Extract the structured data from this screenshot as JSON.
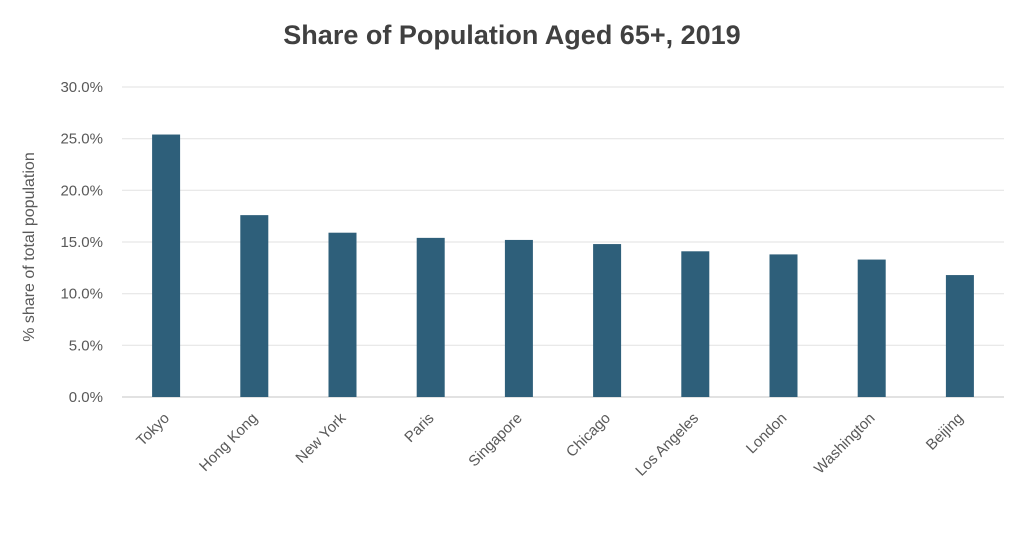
{
  "chart_data": {
    "type": "bar",
    "title": "Share of Population Aged 65+, 2019",
    "xlabel": "",
    "ylabel": "% share of total population",
    "categories": [
      "Tokyo",
      "Hong Kong",
      "New York",
      "Paris",
      "Singapore",
      "Chicago",
      "Los Angeles",
      "London",
      "Washington",
      "Beijing"
    ],
    "values": [
      25.4,
      17.6,
      15.9,
      15.4,
      15.2,
      14.8,
      14.1,
      13.8,
      13.3,
      11.8
    ],
    "ylim": [
      0,
      30
    ],
    "yticks": [
      "0.0%",
      "5.0%",
      "10.0%",
      "15.0%",
      "20.0%",
      "25.0%",
      "30.0%"
    ],
    "grid": true,
    "legend": "none",
    "bar_color": "#2e5f7a",
    "grid_color": "#e6e6e6"
  }
}
